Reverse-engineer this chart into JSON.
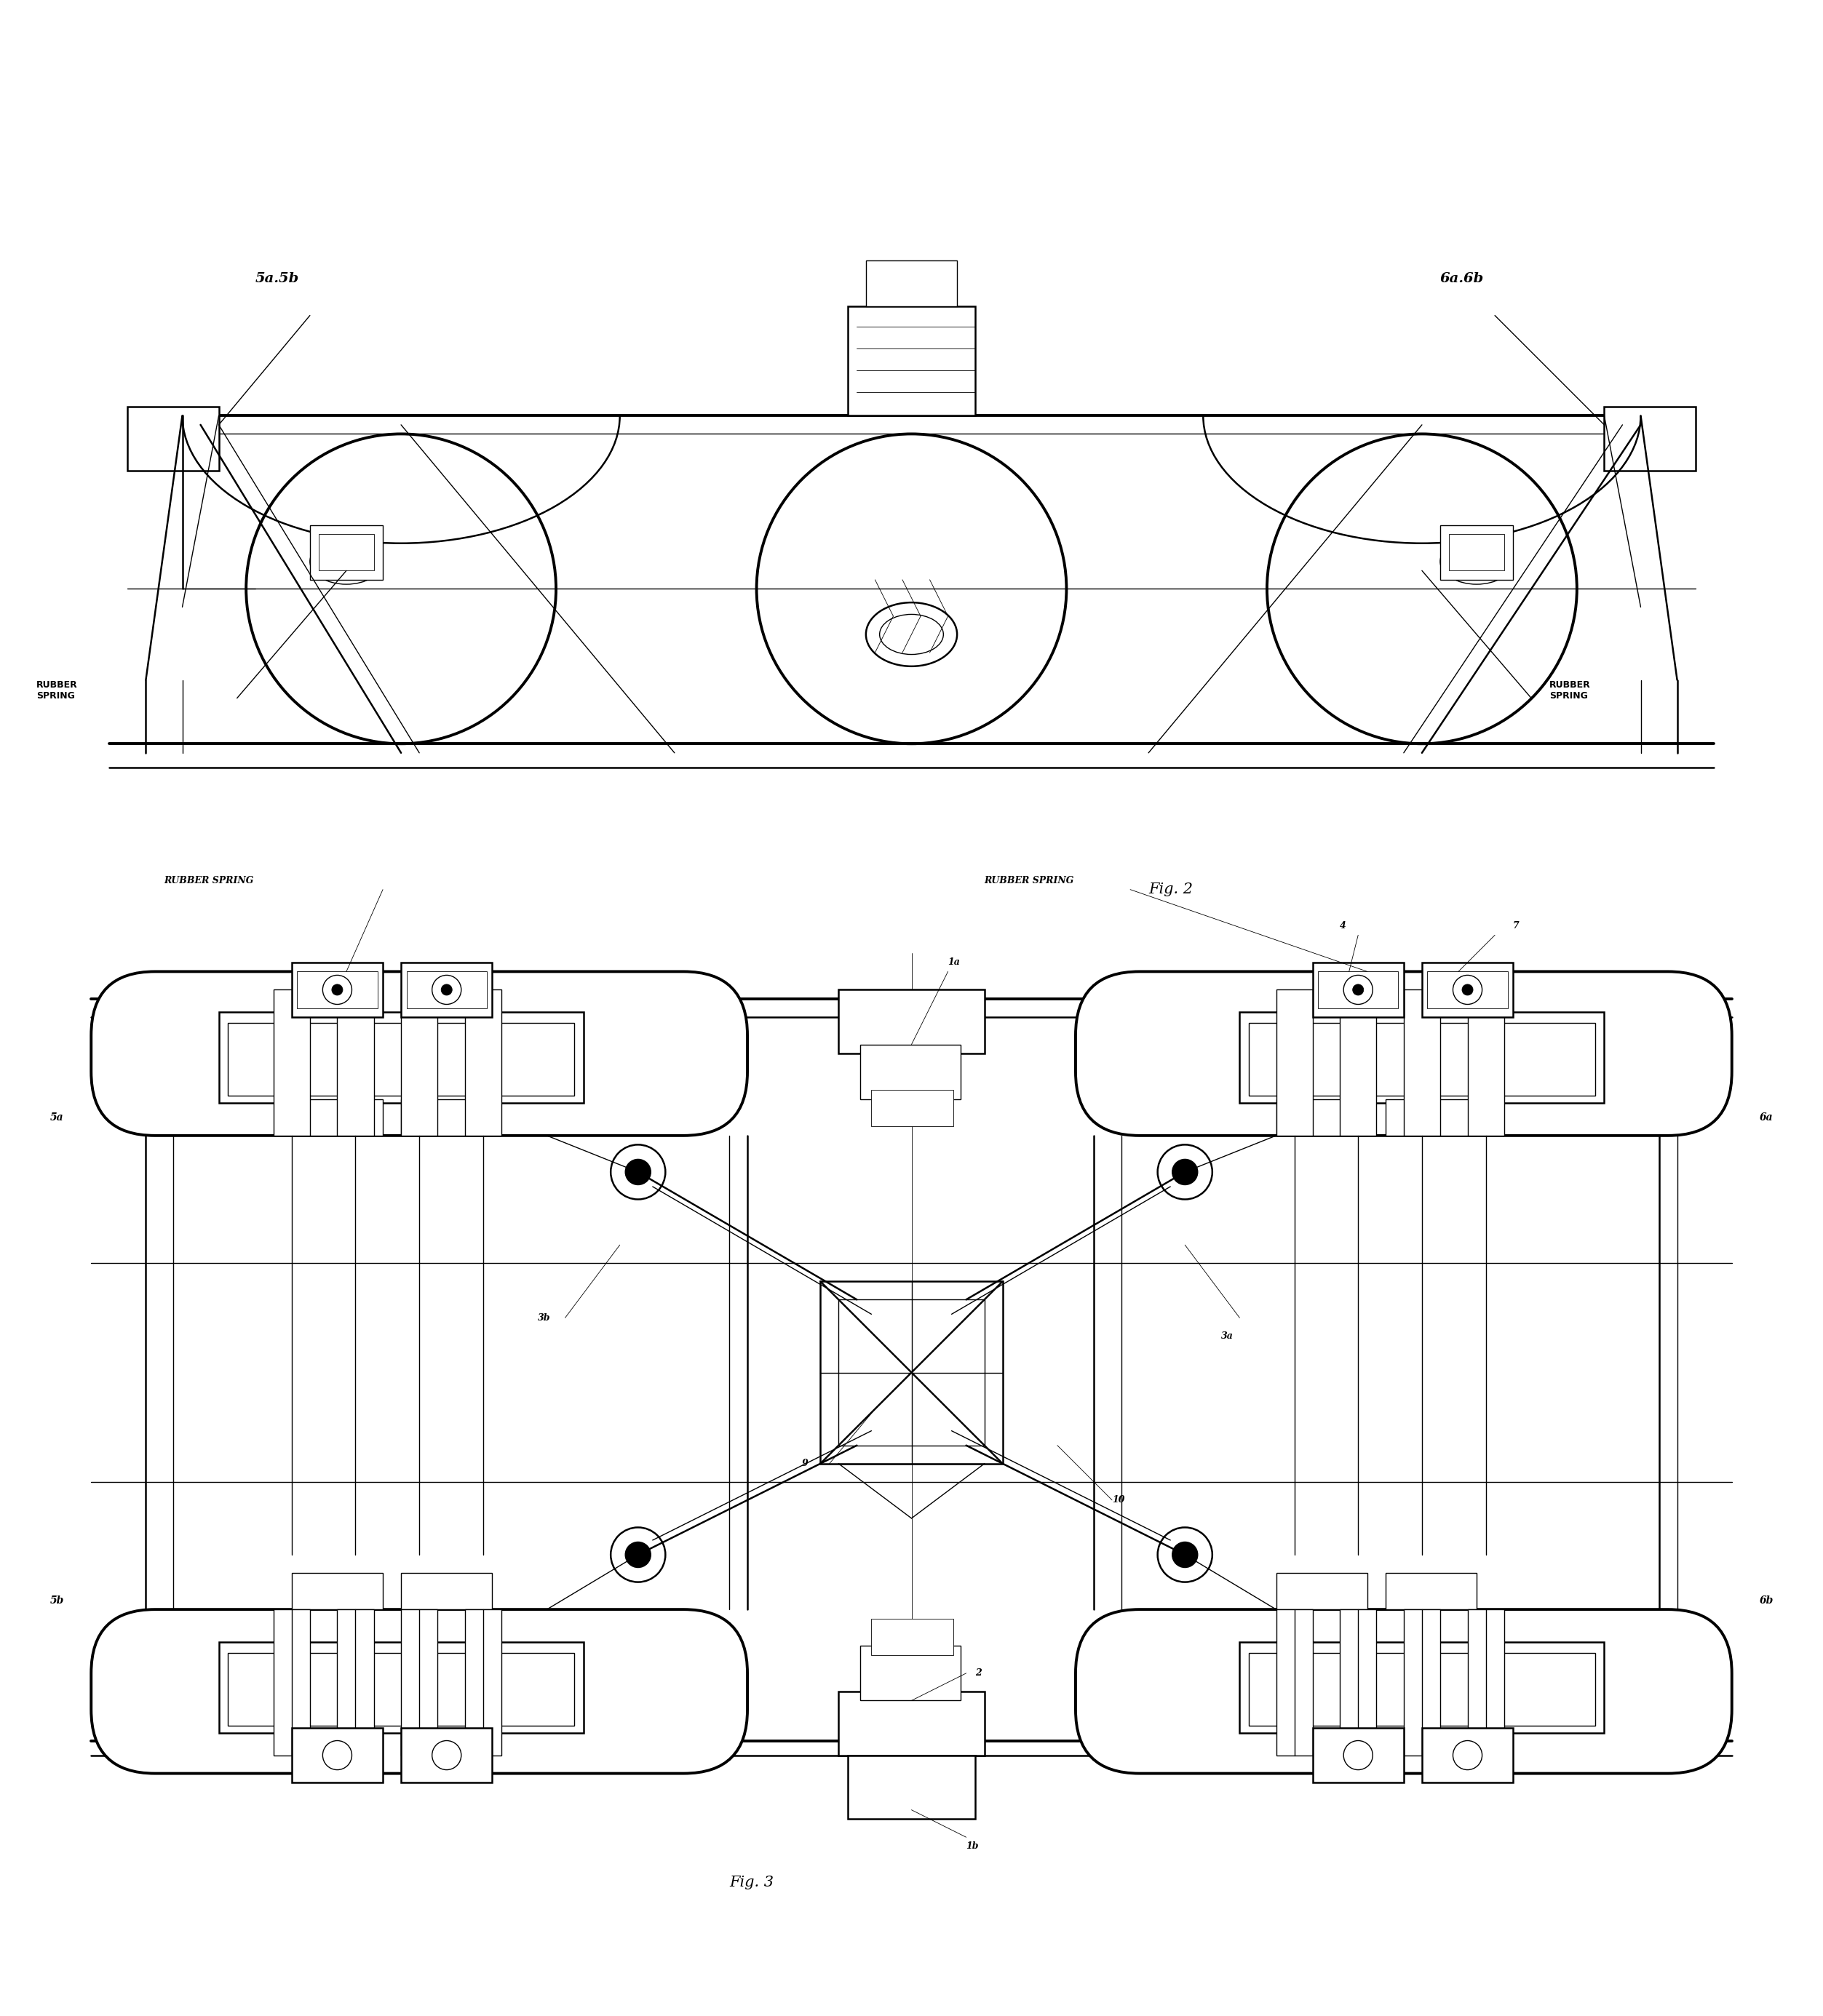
{
  "fig_width": 25.05,
  "fig_height": 27.71,
  "bg_color": "#ffffff",
  "line_color": "#000000",
  "labels": {
    "fig2_title": "Fig. 2",
    "fig3_title": "Fig. 3",
    "label_5a5b": "5a.5b",
    "label_6a6b": "6a.6b",
    "label_rubber_spring_left_top": "RUBBER\nSPRING",
    "label_rubber_spring_right_top": "RUBBER\nSPRING",
    "label_rubber_spring_left_bot": "RUBBER SPRING",
    "label_rubber_spring_right_bot": "RUBBER SPRING",
    "label_1a": "1a",
    "label_1b": "1b",
    "label_2": "2",
    "label_3a": "3a",
    "label_3b": "3b",
    "label_4": "4",
    "label_5a": "5a",
    "label_5b": "5b",
    "label_6a": "6a",
    "label_6b": "6b",
    "label_7": "7",
    "label_9": "9",
    "label_10": "10"
  }
}
